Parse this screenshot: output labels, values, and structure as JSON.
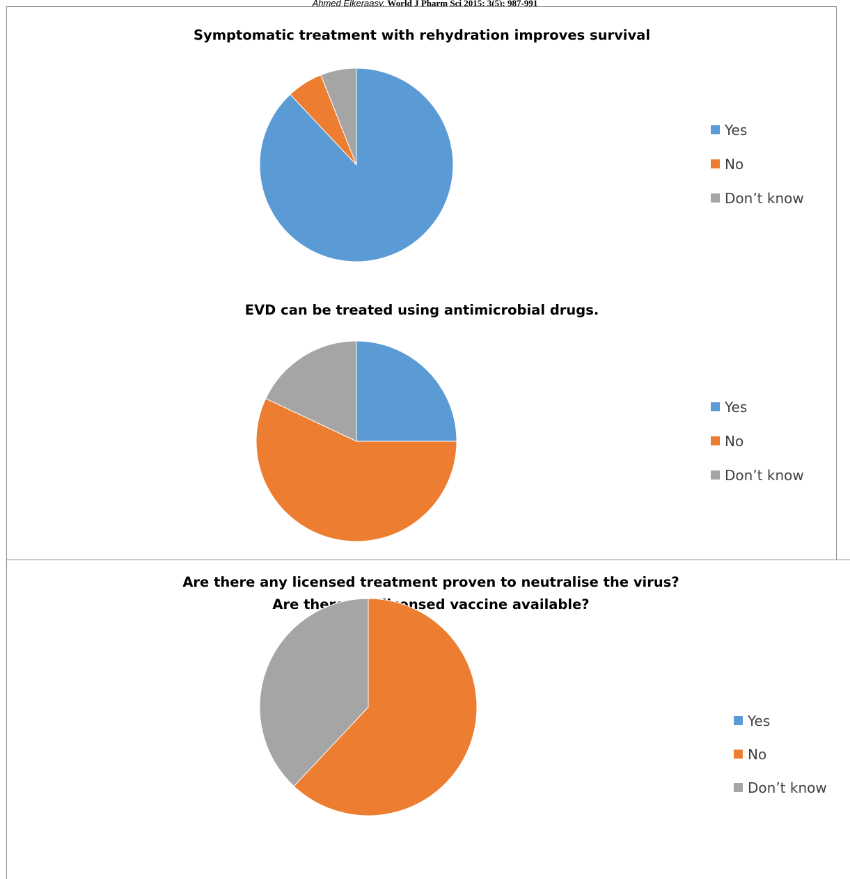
{
  "header": {
    "author": "Ahmed Elkeraasy,",
    "citation": "World J Pharm Sci 2015; 3(5): 987-991"
  },
  "colors": {
    "yes": "#5b9bd5",
    "no": "#ed7d31",
    "dont_know": "#a5a5a5"
  },
  "chart_data": [
    {
      "type": "pie",
      "title": [
        "Symptomatic treatment with rehydration improves survival"
      ],
      "categories": [
        "Yes",
        "No",
        "Don’t know"
      ],
      "values": [
        88,
        6,
        6
      ],
      "legend_position": "right"
    },
    {
      "type": "pie",
      "title": [
        "EVD can be treated using antimicrobial drugs."
      ],
      "categories": [
        "Yes",
        "No",
        "Don’t know"
      ],
      "values": [
        25,
        57,
        18
      ],
      "legend_position": "right"
    },
    {
      "type": "pie",
      "title": [
        "Are there any licensed treatment proven to neutralise the virus?",
        "Are there any licensed vaccine available?"
      ],
      "categories": [
        "Yes",
        "No",
        "Don’t know"
      ],
      "values": [
        0,
        62,
        38
      ],
      "legend_position": "right"
    }
  ]
}
